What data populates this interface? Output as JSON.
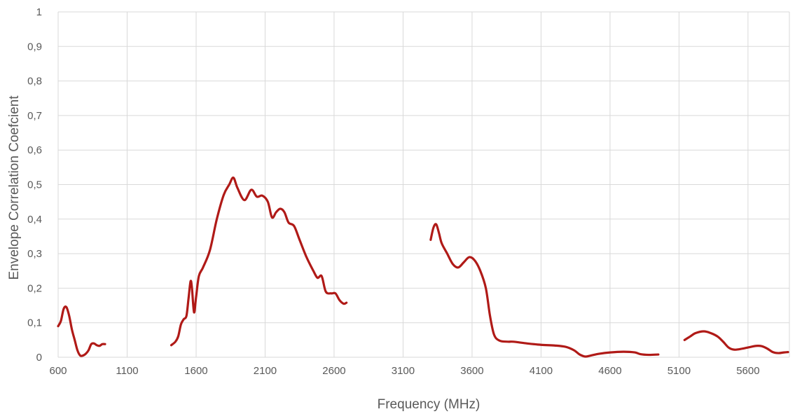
{
  "chart_data": {
    "type": "line",
    "title": "",
    "xlabel": "Frequency (MHz)",
    "ylabel": "Envelope Correlation Coefcient",
    "xlim": [
      600,
      5900
    ],
    "ylim": [
      0,
      1
    ],
    "xticks": [
      "600",
      "1100",
      "1600",
      "2100",
      "2600",
      "3100",
      "3600",
      "4100",
      "4600",
      "5100",
      "5600"
    ],
    "xtick_values": [
      600,
      1100,
      1600,
      2100,
      2600,
      3100,
      3600,
      4100,
      4600,
      5100,
      5600
    ],
    "yticks": [
      "0",
      "0,1",
      "0,2",
      "0,3",
      "0,4",
      "0,5",
      "0,6",
      "0,7",
      "0,8",
      "0,9",
      "1"
    ],
    "ytick_values": [
      0,
      0.1,
      0.2,
      0.3,
      0.4,
      0.5,
      0.6,
      0.7,
      0.8,
      0.9,
      1
    ],
    "grid": true,
    "color": "#b01a17",
    "series": [
      {
        "segments": [
          [
            [
              600,
              0.09
            ],
            [
              620,
              0.105
            ],
            [
              640,
              0.14
            ],
            [
              660,
              0.145
            ],
            [
              680,
              0.12
            ],
            [
              700,
              0.08
            ],
            [
              720,
              0.05
            ],
            [
              740,
              0.02
            ],
            [
              760,
              0.005
            ],
            [
              780,
              0.005
            ],
            [
              800,
              0.01
            ],
            [
              820,
              0.02
            ],
            [
              840,
              0.038
            ],
            [
              860,
              0.04
            ],
            [
              880,
              0.035
            ],
            [
              900,
              0.033
            ],
            [
              920,
              0.038
            ],
            [
              940,
              0.038
            ]
          ],
          [
            [
              1420,
              0.035
            ],
            [
              1450,
              0.045
            ],
            [
              1470,
              0.06
            ],
            [
              1490,
              0.095
            ],
            [
              1510,
              0.11
            ],
            [
              1530,
              0.12
            ],
            [
              1545,
              0.17
            ],
            [
              1560,
              0.22
            ],
            [
              1570,
              0.2
            ],
            [
              1585,
              0.13
            ],
            [
              1600,
              0.175
            ],
            [
              1620,
              0.235
            ],
            [
              1650,
              0.26
            ],
            [
              1700,
              0.31
            ],
            [
              1750,
              0.4
            ],
            [
              1800,
              0.47
            ],
            [
              1840,
              0.5
            ],
            [
              1870,
              0.52
            ],
            [
              1900,
              0.49
            ],
            [
              1950,
              0.455
            ],
            [
              2000,
              0.485
            ],
            [
              2040,
              0.465
            ],
            [
              2080,
              0.468
            ],
            [
              2120,
              0.45
            ],
            [
              2150,
              0.405
            ],
            [
              2180,
              0.42
            ],
            [
              2210,
              0.43
            ],
            [
              2240,
              0.42
            ],
            [
              2270,
              0.39
            ],
            [
              2310,
              0.38
            ],
            [
              2350,
              0.34
            ],
            [
              2400,
              0.29
            ],
            [
              2450,
              0.25
            ],
            [
              2480,
              0.23
            ],
            [
              2510,
              0.235
            ],
            [
              2540,
              0.19
            ],
            [
              2580,
              0.185
            ],
            [
              2610,
              0.185
            ],
            [
              2640,
              0.165
            ],
            [
              2670,
              0.155
            ],
            [
              2690,
              0.158
            ]
          ],
          [
            [
              3300,
              0.34
            ],
            [
              3320,
              0.375
            ],
            [
              3340,
              0.385
            ],
            [
              3360,
              0.36
            ],
            [
              3380,
              0.33
            ],
            [
              3420,
              0.3
            ],
            [
              3460,
              0.27
            ],
            [
              3500,
              0.26
            ],
            [
              3540,
              0.275
            ],
            [
              3580,
              0.29
            ],
            [
              3620,
              0.28
            ],
            [
              3660,
              0.25
            ],
            [
              3700,
              0.2
            ],
            [
              3730,
              0.12
            ],
            [
              3760,
              0.065
            ],
            [
              3800,
              0.048
            ],
            [
              3860,
              0.045
            ],
            [
              3900,
              0.045
            ],
            [
              4000,
              0.04
            ],
            [
              4100,
              0.036
            ],
            [
              4200,
              0.034
            ],
            [
              4280,
              0.03
            ],
            [
              4340,
              0.02
            ],
            [
              4380,
              0.008
            ],
            [
              4420,
              0.002
            ],
            [
              4460,
              0.005
            ],
            [
              4520,
              0.01
            ],
            [
              4600,
              0.014
            ],
            [
              4700,
              0.016
            ],
            [
              4780,
              0.014
            ],
            [
              4820,
              0.009
            ],
            [
              4880,
              0.007
            ],
            [
              4950,
              0.008
            ]
          ],
          [
            [
              5140,
              0.05
            ],
            [
              5180,
              0.06
            ],
            [
              5220,
              0.07
            ],
            [
              5280,
              0.075
            ],
            [
              5330,
              0.07
            ],
            [
              5380,
              0.06
            ],
            [
              5420,
              0.045
            ],
            [
              5460,
              0.028
            ],
            [
              5500,
              0.022
            ],
            [
              5560,
              0.025
            ],
            [
              5620,
              0.03
            ],
            [
              5660,
              0.033
            ],
            [
              5700,
              0.032
            ],
            [
              5740,
              0.025
            ],
            [
              5780,
              0.015
            ],
            [
              5820,
              0.012
            ],
            [
              5860,
              0.014
            ],
            [
              5890,
              0.015
            ]
          ]
        ]
      }
    ]
  }
}
